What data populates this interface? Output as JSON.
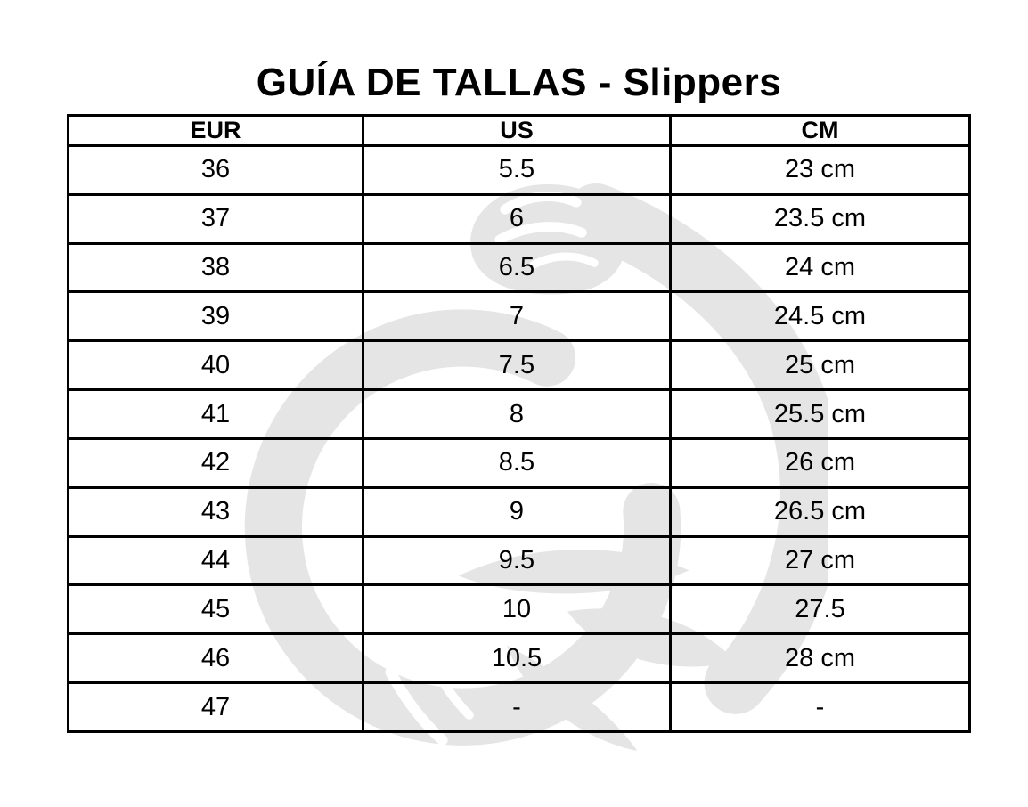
{
  "chart_data": {
    "type": "table",
    "title": "GUÍA DE TALLAS - Slippers",
    "columns": [
      "EUR",
      "US",
      "CM"
    ],
    "rows": [
      [
        "36",
        "5.5",
        "23 cm"
      ],
      [
        "37",
        "6",
        "23.5 cm"
      ],
      [
        "38",
        "6.5",
        "24 cm"
      ],
      [
        "39",
        "7",
        "24.5 cm"
      ],
      [
        "40",
        "7.5",
        "25 cm"
      ],
      [
        "41",
        "8",
        "25.5 cm"
      ],
      [
        "42",
        "8.5",
        "26 cm"
      ],
      [
        "43",
        "9",
        "26.5 cm"
      ],
      [
        "44",
        "9.5",
        "27 cm"
      ],
      [
        "45",
        "10",
        "27.5"
      ],
      [
        "46",
        "10.5",
        "28 cm"
      ],
      [
        "47",
        "-",
        "-"
      ]
    ],
    "layout_hints": {
      "grid": "all-borders",
      "header_style": "bold",
      "watermark": "flexed-arm-logo"
    }
  },
  "style": {
    "border_color": "#000000",
    "text_color": "#000000",
    "background_color": "#ffffff",
    "watermark_color": "#e5e5e5"
  },
  "watermark": {
    "name": "flexed-arm-logo"
  }
}
